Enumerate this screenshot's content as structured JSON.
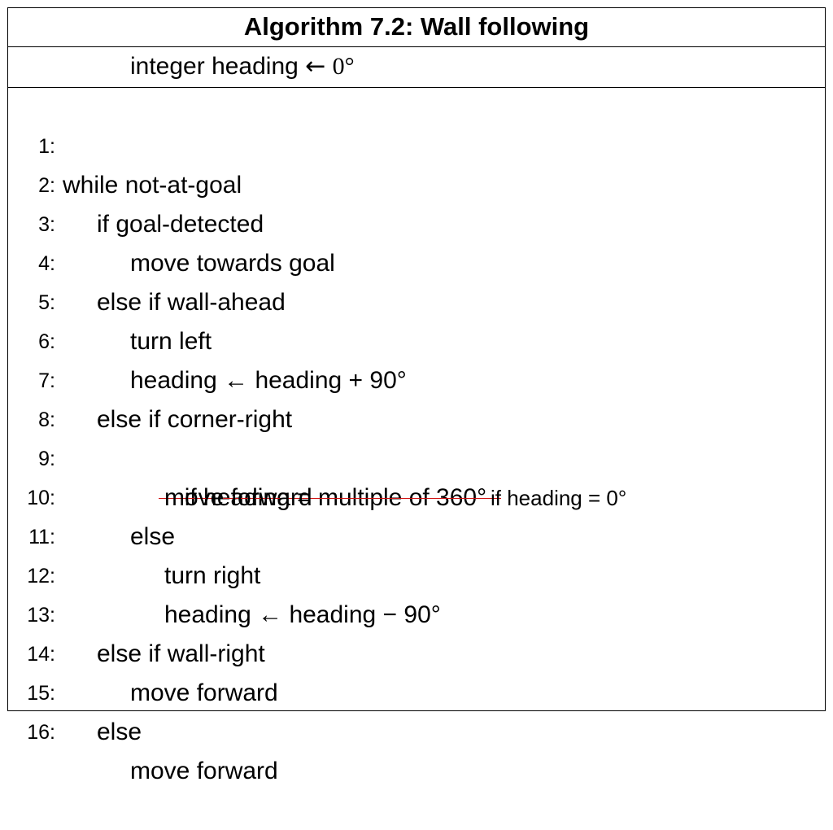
{
  "algorithm": {
    "title": "Algorithm 7.2: Wall following",
    "declaration": {
      "text": "integer heading ",
      "arrow": "←",
      "value": "0°"
    },
    "lines": [
      {
        "num": "1:",
        "text": "while not-at-goal"
      },
      {
        "num": "2:",
        "text": "if goal-detected"
      },
      {
        "num": "3:",
        "text": "move towards goal"
      },
      {
        "num": "4:",
        "text": "else if wall-ahead"
      },
      {
        "num": "5:",
        "text": "turn left"
      },
      {
        "num": "6:",
        "text": "heading ← heading + 90°"
      },
      {
        "num": "7:",
        "text": "else if corner-right"
      },
      {
        "num": "8:",
        "struck_text": "if heading = multiple of 360°",
        "replacement_text": "if heading = 0°"
      },
      {
        "num": "9:",
        "text": "move forward"
      },
      {
        "num": "10:",
        "text": "else"
      },
      {
        "num": "11:",
        "text": "turn right"
      },
      {
        "num": "12:",
        "text": "heading ← heading − 90°"
      },
      {
        "num": "13:",
        "text": "else if wall-right"
      },
      {
        "num": "14:",
        "text": "move forward"
      },
      {
        "num": "15:",
        "text": "else"
      },
      {
        "num": "16:",
        "text": "move forward"
      }
    ],
    "strike_color": "#d01010"
  }
}
